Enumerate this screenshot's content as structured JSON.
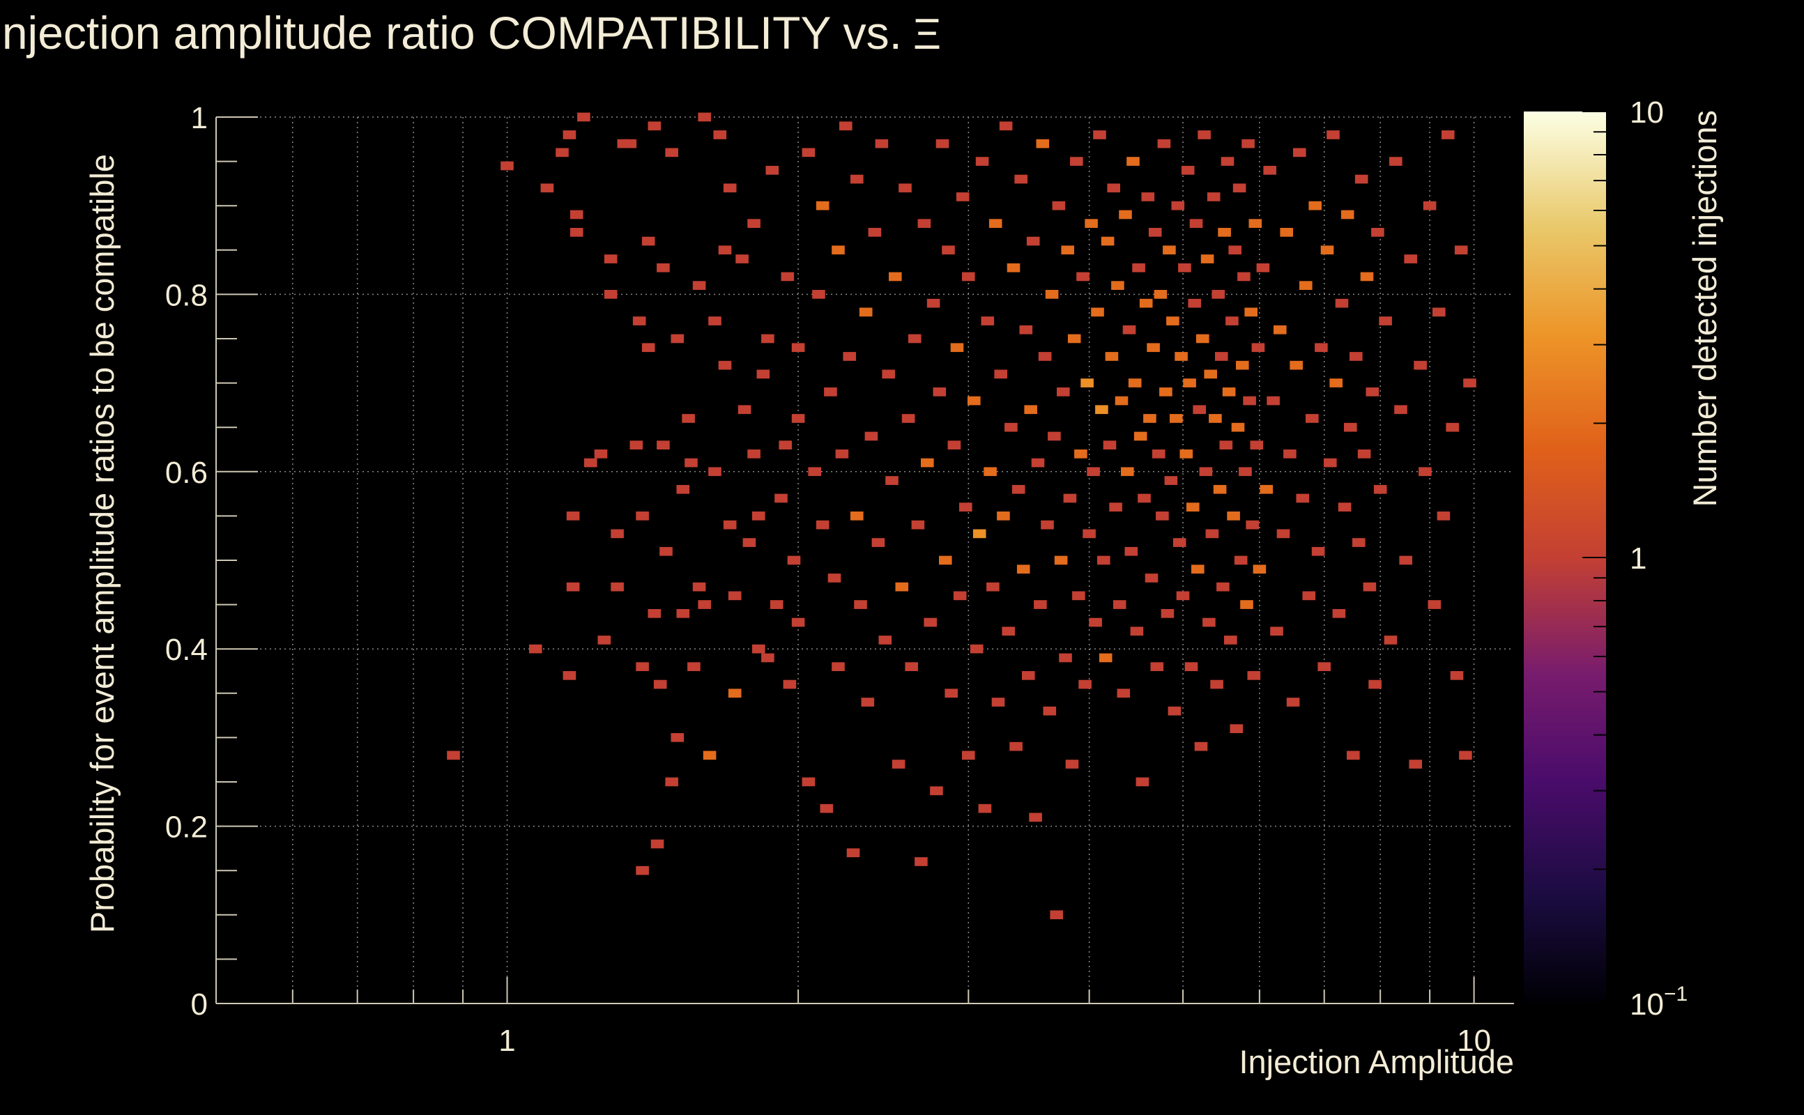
{
  "chart_data": {
    "type": "heatmap",
    "title": "Injection amplitude ratio COMPATIBILITY vs.",
    "title_symbol": "Ξ",
    "xlabel": "Injection Amplitude",
    "ylabel": "Probability for event amplitude ratios to be compatible",
    "zlabel": "Number detected injections",
    "x_scale": "log",
    "xlim": [
      0.5,
      11
    ],
    "ylim": [
      0,
      1
    ],
    "zlim": [
      0.1,
      10
    ],
    "z_scale": "log",
    "x_tick_labels": [
      {
        "value": 1,
        "label": "1"
      },
      {
        "value": 10,
        "label": "10"
      }
    ],
    "y_tick_labels": [
      {
        "value": 0,
        "label": "0"
      },
      {
        "value": 0.2,
        "label": "0.2"
      },
      {
        "value": 0.4,
        "label": "0.4"
      },
      {
        "value": 0.6,
        "label": "0.6"
      },
      {
        "value": 0.8,
        "label": "0.8"
      },
      {
        "value": 1,
        "label": "1"
      }
    ],
    "z_tick_labels": [
      {
        "value": 0.1,
        "label": "10",
        "exponent": "−1"
      },
      {
        "value": 1,
        "label": "1",
        "exponent": ""
      },
      {
        "value": 10,
        "label": "10",
        "exponent": ""
      }
    ],
    "grid": true,
    "colormap": "inferno",
    "bins": {
      "x_edges_log": true,
      "x_bins": 100,
      "y_bins": 100,
      "note_bins": "counts per bin; empty bins omitted"
    },
    "cells": [
      [
        0.88,
        0.28,
        1
      ],
      [
        1.0,
        0.945,
        1
      ],
      [
        1.07,
        0.4,
        1
      ],
      [
        1.1,
        0.92,
        1
      ],
      [
        1.14,
        0.96,
        1
      ],
      [
        1.16,
        0.98,
        1
      ],
      [
        1.16,
        0.37,
        1
      ],
      [
        1.17,
        0.55,
        1
      ],
      [
        1.17,
        0.47,
        1
      ],
      [
        1.18,
        0.89,
        1
      ],
      [
        1.18,
        0.87,
        1
      ],
      [
        1.2,
        1.0,
        1
      ],
      [
        1.22,
        0.61,
        1
      ],
      [
        1.25,
        0.62,
        1
      ],
      [
        1.26,
        0.41,
        1
      ],
      [
        1.28,
        0.84,
        1
      ],
      [
        1.28,
        0.8,
        1
      ],
      [
        1.3,
        0.47,
        1
      ],
      [
        1.3,
        0.53,
        1
      ],
      [
        1.32,
        0.97,
        1
      ],
      [
        1.34,
        0.97,
        1
      ],
      [
        1.36,
        0.63,
        1
      ],
      [
        1.37,
        0.77,
        1
      ],
      [
        1.38,
        0.38,
        1
      ],
      [
        1.38,
        0.15,
        1
      ],
      [
        1.38,
        0.55,
        1
      ],
      [
        1.4,
        0.86,
        1
      ],
      [
        1.4,
        0.74,
        1
      ],
      [
        1.42,
        0.99,
        1
      ],
      [
        1.42,
        0.44,
        1
      ],
      [
        1.43,
        0.18,
        1
      ],
      [
        1.44,
        0.36,
        1
      ],
      [
        1.45,
        0.83,
        1
      ],
      [
        1.45,
        0.63,
        1
      ],
      [
        1.46,
        0.51,
        1
      ],
      [
        1.48,
        0.96,
        1
      ],
      [
        1.48,
        0.25,
        1
      ],
      [
        1.5,
        0.3,
        1
      ],
      [
        1.5,
        0.75,
        1
      ],
      [
        1.52,
        0.44,
        1
      ],
      [
        1.52,
        0.58,
        1
      ],
      [
        1.54,
        0.66,
        1
      ],
      [
        1.55,
        0.61,
        1
      ],
      [
        1.56,
        0.38,
        1
      ],
      [
        1.58,
        0.47,
        1
      ],
      [
        1.58,
        0.81,
        1
      ],
      [
        1.6,
        1.0,
        1
      ],
      [
        1.6,
        0.45,
        1
      ],
      [
        1.62,
        0.28,
        2
      ],
      [
        1.64,
        0.77,
        1
      ],
      [
        1.64,
        0.6,
        1
      ],
      [
        1.66,
        0.98,
        1
      ],
      [
        1.68,
        0.85,
        1
      ],
      [
        1.68,
        0.72,
        1
      ],
      [
        1.7,
        0.92,
        1
      ],
      [
        1.7,
        0.54,
        1
      ],
      [
        1.72,
        0.35,
        2
      ],
      [
        1.72,
        0.46,
        1
      ],
      [
        1.75,
        0.84,
        1
      ],
      [
        1.76,
        0.67,
        1
      ],
      [
        1.78,
        0.52,
        1
      ],
      [
        1.8,
        0.88,
        1
      ],
      [
        1.8,
        0.62,
        1
      ],
      [
        1.82,
        0.55,
        1
      ],
      [
        1.82,
        0.4,
        1
      ],
      [
        1.84,
        0.71,
        1
      ],
      [
        1.86,
        0.75,
        1
      ],
      [
        1.86,
        0.39,
        1
      ],
      [
        1.88,
        0.94,
        1
      ],
      [
        1.9,
        0.45,
        1
      ],
      [
        1.92,
        0.57,
        1
      ],
      [
        1.94,
        0.63,
        1
      ],
      [
        1.95,
        0.82,
        1
      ],
      [
        1.96,
        0.36,
        1
      ],
      [
        1.98,
        0.5,
        1
      ],
      [
        2.0,
        0.66,
        1
      ],
      [
        2.0,
        0.74,
        1
      ],
      [
        2.0,
        0.43,
        1
      ],
      [
        2.05,
        0.96,
        1
      ],
      [
        2.05,
        0.25,
        1
      ],
      [
        2.08,
        0.6,
        1
      ],
      [
        2.1,
        0.8,
        1
      ],
      [
        2.12,
        0.54,
        1
      ],
      [
        2.12,
        0.9,
        2
      ],
      [
        2.14,
        0.22,
        1
      ],
      [
        2.16,
        0.69,
        1
      ],
      [
        2.18,
        0.48,
        1
      ],
      [
        2.2,
        0.85,
        2
      ],
      [
        2.2,
        0.38,
        1
      ],
      [
        2.22,
        0.62,
        1
      ],
      [
        2.24,
        0.99,
        1
      ],
      [
        2.26,
        0.73,
        1
      ],
      [
        2.28,
        0.17,
        1
      ],
      [
        2.3,
        0.55,
        2
      ],
      [
        2.3,
        0.93,
        1
      ],
      [
        2.32,
        0.45,
        1
      ],
      [
        2.35,
        0.78,
        2
      ],
      [
        2.36,
        0.34,
        1
      ],
      [
        2.38,
        0.64,
        1
      ],
      [
        2.4,
        0.87,
        1
      ],
      [
        2.42,
        0.52,
        1
      ],
      [
        2.44,
        0.97,
        1
      ],
      [
        2.46,
        0.41,
        1
      ],
      [
        2.48,
        0.71,
        1
      ],
      [
        2.5,
        0.59,
        1
      ],
      [
        2.52,
        0.82,
        2
      ],
      [
        2.54,
        0.27,
        1
      ],
      [
        2.56,
        0.47,
        2
      ],
      [
        2.58,
        0.92,
        1
      ],
      [
        2.6,
        0.66,
        1
      ],
      [
        2.62,
        0.38,
        1
      ],
      [
        2.64,
        0.75,
        1
      ],
      [
        2.66,
        0.54,
        1
      ],
      [
        2.68,
        0.16,
        1
      ],
      [
        2.7,
        0.88,
        1
      ],
      [
        2.72,
        0.61,
        2
      ],
      [
        2.74,
        0.43,
        1
      ],
      [
        2.76,
        0.79,
        1
      ],
      [
        2.78,
        0.24,
        1
      ],
      [
        2.8,
        0.69,
        1
      ],
      [
        2.82,
        0.97,
        1
      ],
      [
        2.84,
        0.5,
        2
      ],
      [
        2.86,
        0.85,
        1
      ],
      [
        2.88,
        0.35,
        1
      ],
      [
        2.9,
        0.63,
        1
      ],
      [
        2.92,
        0.74,
        2
      ],
      [
        2.94,
        0.46,
        1
      ],
      [
        2.96,
        0.91,
        1
      ],
      [
        2.98,
        0.56,
        1
      ],
      [
        3.0,
        0.28,
        1
      ],
      [
        3.0,
        0.82,
        1
      ],
      [
        3.04,
        0.68,
        2
      ],
      [
        3.06,
        0.4,
        1
      ],
      [
        3.08,
        0.53,
        3
      ],
      [
        3.1,
        0.95,
        1
      ],
      [
        3.12,
        0.22,
        1
      ],
      [
        3.14,
        0.77,
        1
      ],
      [
        3.16,
        0.6,
        2
      ],
      [
        3.18,
        0.47,
        1
      ],
      [
        3.2,
        0.88,
        2
      ],
      [
        3.22,
        0.34,
        1
      ],
      [
        3.24,
        0.71,
        1
      ],
      [
        3.26,
        0.55,
        2
      ],
      [
        3.28,
        0.99,
        1
      ],
      [
        3.3,
        0.42,
        1
      ],
      [
        3.32,
        0.65,
        1
      ],
      [
        3.34,
        0.83,
        2
      ],
      [
        3.36,
        0.29,
        1
      ],
      [
        3.38,
        0.58,
        1
      ],
      [
        3.4,
        0.93,
        1
      ],
      [
        3.42,
        0.49,
        2
      ],
      [
        3.44,
        0.76,
        1
      ],
      [
        3.46,
        0.37,
        1
      ],
      [
        3.48,
        0.67,
        2
      ],
      [
        3.5,
        0.86,
        1
      ],
      [
        3.52,
        0.21,
        1
      ],
      [
        3.54,
        0.61,
        1
      ],
      [
        3.56,
        0.45,
        1
      ],
      [
        3.58,
        0.97,
        2
      ],
      [
        3.6,
        0.73,
        1
      ],
      [
        3.62,
        0.54,
        1
      ],
      [
        3.64,
        0.33,
        1
      ],
      [
        3.66,
        0.8,
        2
      ],
      [
        3.68,
        0.64,
        1
      ],
      [
        3.7,
        0.1,
        1
      ],
      [
        3.72,
        0.9,
        1
      ],
      [
        3.74,
        0.5,
        2
      ],
      [
        3.76,
        0.69,
        1
      ],
      [
        3.78,
        0.39,
        1
      ],
      [
        3.8,
        0.85,
        2
      ],
      [
        3.82,
        0.57,
        1
      ],
      [
        3.84,
        0.27,
        1
      ],
      [
        3.86,
        0.75,
        2
      ],
      [
        3.88,
        0.95,
        1
      ],
      [
        3.9,
        0.46,
        1
      ],
      [
        3.92,
        0.62,
        2
      ],
      [
        3.94,
        0.82,
        1
      ],
      [
        3.96,
        0.36,
        1
      ],
      [
        3.98,
        0.7,
        3
      ],
      [
        4.0,
        0.53,
        1
      ],
      [
        4.02,
        0.88,
        2
      ],
      [
        4.04,
        0.6,
        1
      ],
      [
        4.06,
        0.43,
        1
      ],
      [
        4.08,
        0.78,
        2
      ],
      [
        4.1,
        0.98,
        1
      ],
      [
        4.12,
        0.67,
        3
      ],
      [
        4.14,
        0.5,
        1
      ],
      [
        4.16,
        0.39,
        2
      ],
      [
        4.18,
        0.86,
        2
      ],
      [
        4.2,
        0.63,
        1
      ],
      [
        4.22,
        0.73,
        2
      ],
      [
        4.24,
        0.92,
        1
      ],
      [
        4.26,
        0.56,
        1
      ],
      [
        4.28,
        0.81,
        2
      ],
      [
        4.3,
        0.45,
        1
      ],
      [
        4.32,
        0.68,
        2
      ],
      [
        4.34,
        0.35,
        1
      ],
      [
        4.36,
        0.89,
        2
      ],
      [
        4.38,
        0.6,
        2
      ],
      [
        4.4,
        0.76,
        1
      ],
      [
        4.42,
        0.51,
        1
      ],
      [
        4.44,
        0.95,
        2
      ],
      [
        4.46,
        0.7,
        2
      ],
      [
        4.48,
        0.42,
        1
      ],
      [
        4.5,
        0.83,
        1
      ],
      [
        4.52,
        0.64,
        2
      ],
      [
        4.54,
        0.25,
        1
      ],
      [
        4.56,
        0.57,
        1
      ],
      [
        4.58,
        0.79,
        2
      ],
      [
        4.6,
        0.91,
        1
      ],
      [
        4.62,
        0.66,
        2
      ],
      [
        4.64,
        0.48,
        1
      ],
      [
        4.66,
        0.74,
        2
      ],
      [
        4.68,
        0.87,
        1
      ],
      [
        4.7,
        0.38,
        1
      ],
      [
        4.72,
        0.62,
        1
      ],
      [
        4.74,
        0.8,
        2
      ],
      [
        4.76,
        0.55,
        1
      ],
      [
        4.78,
        0.97,
        1
      ],
      [
        4.8,
        0.69,
        2
      ],
      [
        4.82,
        0.44,
        1
      ],
      [
        4.84,
        0.85,
        2
      ],
      [
        4.86,
        0.59,
        1
      ],
      [
        4.88,
        0.77,
        2
      ],
      [
        4.9,
        0.33,
        1
      ],
      [
        4.92,
        0.66,
        2
      ],
      [
        4.94,
        0.9,
        1
      ],
      [
        4.96,
        0.52,
        1
      ],
      [
        4.98,
        0.73,
        2
      ],
      [
        5.0,
        0.46,
        1
      ],
      [
        5.02,
        0.83,
        1
      ],
      [
        5.04,
        0.62,
        2
      ],
      [
        5.06,
        0.94,
        1
      ],
      [
        5.08,
        0.7,
        2
      ],
      [
        5.1,
        0.38,
        1
      ],
      [
        5.12,
        0.56,
        2
      ],
      [
        5.14,
        0.79,
        1
      ],
      [
        5.16,
        0.88,
        1
      ],
      [
        5.18,
        0.49,
        2
      ],
      [
        5.2,
        0.67,
        1
      ],
      [
        5.22,
        0.29,
        1
      ],
      [
        5.24,
        0.75,
        2
      ],
      [
        5.26,
        0.98,
        1
      ],
      [
        5.28,
        0.6,
        1
      ],
      [
        5.3,
        0.84,
        2
      ],
      [
        5.32,
        0.43,
        1
      ],
      [
        5.34,
        0.71,
        2
      ],
      [
        5.36,
        0.53,
        1
      ],
      [
        5.38,
        0.91,
        1
      ],
      [
        5.4,
        0.66,
        2
      ],
      [
        5.42,
        0.36,
        1
      ],
      [
        5.44,
        0.8,
        1
      ],
      [
        5.46,
        0.58,
        2
      ],
      [
        5.48,
        0.73,
        1
      ],
      [
        5.5,
        0.47,
        1
      ],
      [
        5.52,
        0.87,
        2
      ],
      [
        5.54,
        0.63,
        1
      ],
      [
        5.56,
        0.95,
        1
      ],
      [
        5.58,
        0.69,
        2
      ],
      [
        5.6,
        0.41,
        1
      ],
      [
        5.62,
        0.77,
        1
      ],
      [
        5.64,
        0.55,
        2
      ],
      [
        5.66,
        0.85,
        1
      ],
      [
        5.68,
        0.31,
        1
      ],
      [
        5.7,
        0.65,
        2
      ],
      [
        5.72,
        0.92,
        1
      ],
      [
        5.74,
        0.5,
        1
      ],
      [
        5.76,
        0.72,
        2
      ],
      [
        5.78,
        0.82,
        1
      ],
      [
        5.8,
        0.6,
        1
      ],
      [
        5.82,
        0.45,
        2
      ],
      [
        5.84,
        0.97,
        1
      ],
      [
        5.86,
        0.68,
        1
      ],
      [
        5.88,
        0.78,
        2
      ],
      [
        5.9,
        0.54,
        1
      ],
      [
        5.92,
        0.37,
        1
      ],
      [
        5.94,
        0.88,
        2
      ],
      [
        5.96,
        0.63,
        1
      ],
      [
        5.98,
        0.74,
        1
      ],
      [
        6.0,
        0.49,
        2
      ],
      [
        6.05,
        0.83,
        1
      ],
      [
        6.1,
        0.58,
        2
      ],
      [
        6.15,
        0.94,
        1
      ],
      [
        6.2,
        0.68,
        1
      ],
      [
        6.25,
        0.42,
        1
      ],
      [
        6.3,
        0.76,
        2
      ],
      [
        6.35,
        0.53,
        1
      ],
      [
        6.4,
        0.87,
        2
      ],
      [
        6.45,
        0.62,
        1
      ],
      [
        6.5,
        0.34,
        1
      ],
      [
        6.55,
        0.72,
        2
      ],
      [
        6.6,
        0.96,
        1
      ],
      [
        6.65,
        0.57,
        1
      ],
      [
        6.7,
        0.81,
        2
      ],
      [
        6.75,
        0.46,
        1
      ],
      [
        6.8,
        0.66,
        1
      ],
      [
        6.85,
        0.9,
        2
      ],
      [
        6.9,
        0.51,
        1
      ],
      [
        6.95,
        0.74,
        1
      ],
      [
        7.0,
        0.38,
        1
      ],
      [
        7.05,
        0.85,
        2
      ],
      [
        7.1,
        0.61,
        1
      ],
      [
        7.15,
        0.98,
        1
      ],
      [
        7.2,
        0.7,
        2
      ],
      [
        7.25,
        0.44,
        1
      ],
      [
        7.3,
        0.79,
        1
      ],
      [
        7.35,
        0.56,
        1
      ],
      [
        7.4,
        0.89,
        2
      ],
      [
        7.45,
        0.65,
        1
      ],
      [
        7.5,
        0.28,
        1
      ],
      [
        7.55,
        0.73,
        1
      ],
      [
        7.6,
        0.52,
        1
      ],
      [
        7.65,
        0.93,
        1
      ],
      [
        7.7,
        0.62,
        1
      ],
      [
        7.75,
        0.82,
        2
      ],
      [
        7.8,
        0.47,
        1
      ],
      [
        7.85,
        0.69,
        1
      ],
      [
        7.9,
        0.36,
        1
      ],
      [
        7.95,
        0.87,
        1
      ],
      [
        8.0,
        0.58,
        1
      ],
      [
        8.1,
        0.77,
        1
      ],
      [
        8.2,
        0.41,
        1
      ],
      [
        8.3,
        0.95,
        1
      ],
      [
        8.4,
        0.67,
        1
      ],
      [
        8.5,
        0.5,
        1
      ],
      [
        8.6,
        0.84,
        1
      ],
      [
        8.7,
        0.27,
        1
      ],
      [
        8.8,
        0.72,
        1
      ],
      [
        8.9,
        0.6,
        1
      ],
      [
        9.0,
        0.9,
        1
      ],
      [
        9.1,
        0.45,
        1
      ],
      [
        9.2,
        0.78,
        1
      ],
      [
        9.3,
        0.55,
        1
      ],
      [
        9.4,
        0.98,
        1
      ],
      [
        9.5,
        0.65,
        1
      ],
      [
        9.6,
        0.37,
        1
      ],
      [
        9.7,
        0.85,
        1
      ],
      [
        9.8,
        0.28,
        1
      ],
      [
        9.9,
        0.7,
        1
      ]
    ]
  }
}
